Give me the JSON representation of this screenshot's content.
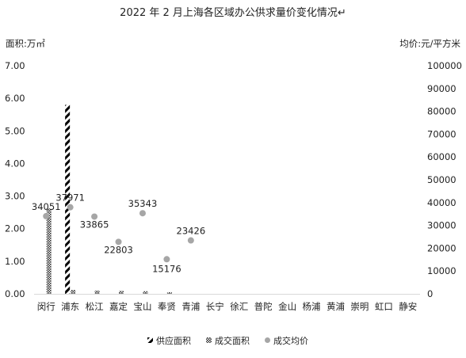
{
  "chart_data": {
    "type": "bar",
    "title": "2022 年 2 月上海各区域办公供求量价变化情况↵",
    "y_left_label": "面积:万㎡",
    "y_right_label": "均价:元/平方米",
    "y_left_ticks": [
      "0.00",
      "1.00",
      "2.00",
      "3.00",
      "4.00",
      "5.00",
      "6.00",
      "7.00"
    ],
    "y_right_ticks": [
      "0",
      "10000",
      "20000",
      "30000",
      "40000",
      "50000",
      "60000",
      "70000",
      "80000",
      "90000",
      "100000"
    ],
    "ylim_left": [
      0,
      7
    ],
    "ylim_right": [
      0,
      100000
    ],
    "categories": [
      "闵行",
      "浦东",
      "松江",
      "嘉定",
      "宝山",
      "奉贤",
      "青浦",
      "长宁",
      "徐汇",
      "普陀",
      "金山",
      "杨浦",
      "黄浦",
      "崇明",
      "虹口",
      "静安"
    ],
    "series": [
      {
        "name": "供应面积",
        "kind": "bar",
        "axis": "left",
        "pattern": "diagonal",
        "values": [
          0,
          5.8,
          0,
          0,
          0,
          0,
          0,
          0,
          0,
          0,
          0,
          0,
          0,
          0,
          0,
          0
        ]
      },
      {
        "name": "成交面积",
        "kind": "bar",
        "axis": "left",
        "pattern": "dots",
        "values": [
          2.62,
          0.12,
          0.1,
          0.09,
          0.08,
          0.05,
          0,
          0,
          0,
          0,
          0,
          0,
          0,
          0,
          0,
          0
        ]
      },
      {
        "name": "成交均价",
        "kind": "scatter",
        "axis": "right",
        "values": [
          34051,
          37971,
          33865,
          22803,
          35343,
          15176,
          23426,
          null,
          null,
          null,
          null,
          null,
          null,
          null,
          null,
          null
        ]
      }
    ],
    "data_labels": [
      "34051",
      "37971",
      "33865",
      "22803",
      "35343",
      "15176",
      "23426"
    ],
    "grid": false,
    "legend": "bottom",
    "colors": {
      "marker": "#a6a6a6",
      "bar": "#000000",
      "axis": "#d9d9d9",
      "text": "#222222"
    }
  }
}
